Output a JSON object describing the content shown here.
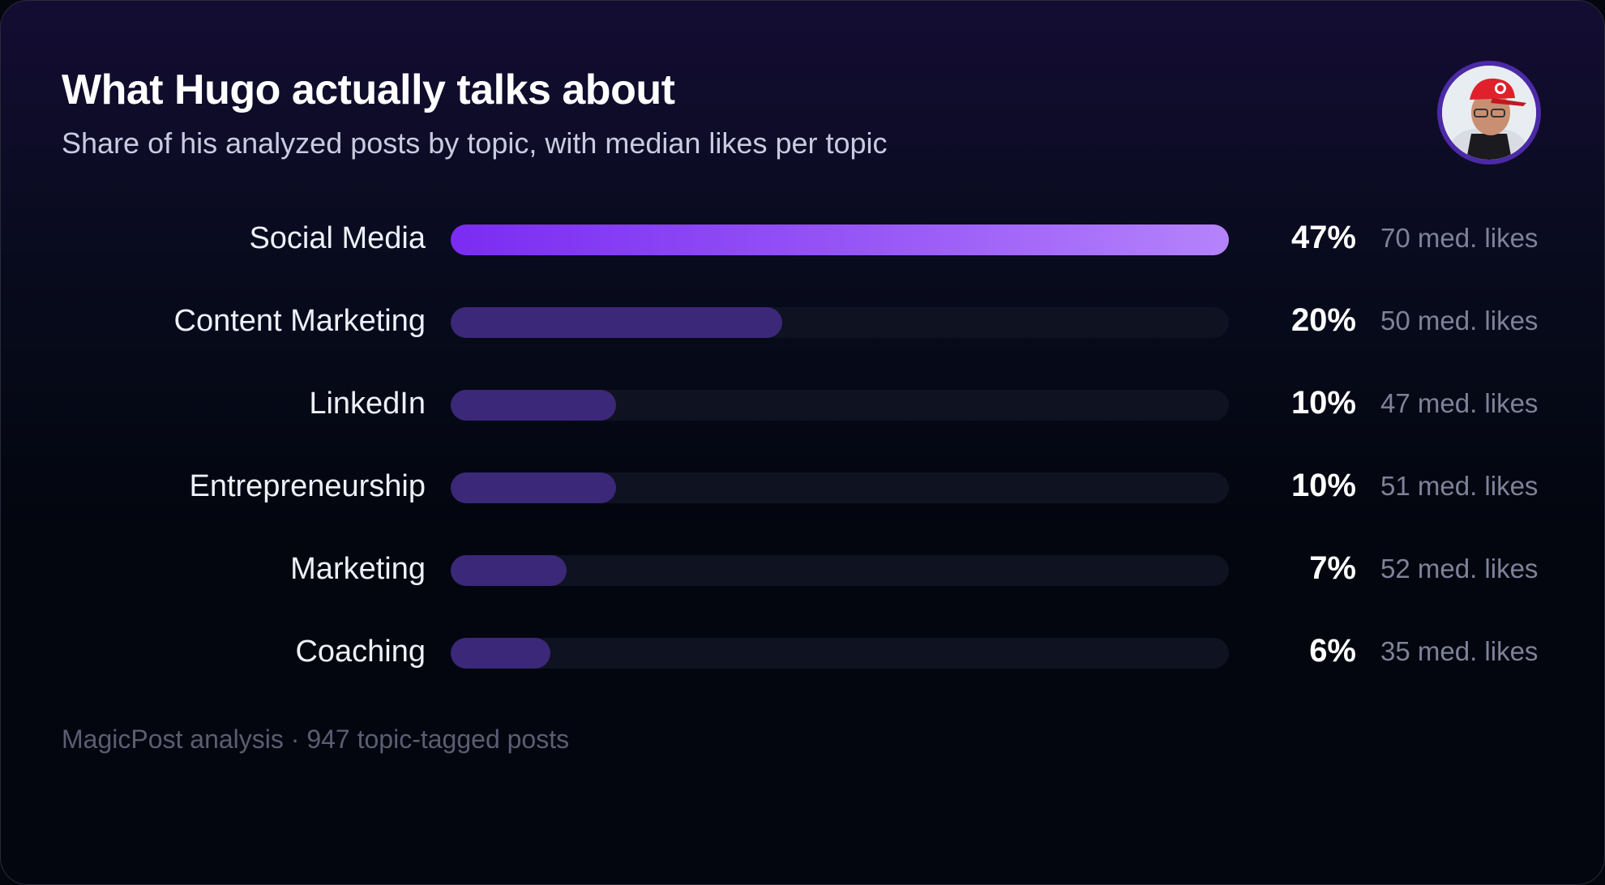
{
  "colors": {
    "background": "#03060f",
    "top_bar_start": "#7a2cf2",
    "top_bar_end": "#b583fb",
    "bar": "#3b2878",
    "track": "#0f1220",
    "avatar_ring": "#4b2aa6"
  },
  "avatar": {
    "icon": "profile-photo-red-cap"
  },
  "chart_data": {
    "type": "bar",
    "orientation": "horizontal",
    "title": "What Hugo actually talks about",
    "subtitle": "Share of his analyzed posts by topic, with median likes per topic",
    "categories": [
      "Social Media",
      "Content Marketing",
      "LinkedIn",
      "Entrepreneurship",
      "Marketing",
      "Coaching"
    ],
    "values": [
      47,
      20,
      10,
      10,
      7,
      6
    ],
    "value_labels": [
      "47%",
      "20%",
      "10%",
      "10%",
      "7%",
      "6%"
    ],
    "median_likes": [
      70,
      50,
      47,
      51,
      52,
      35
    ],
    "median_likes_labels": [
      "70 med. likes",
      "50 med. likes",
      "47 med. likes",
      "51 med. likes",
      "52 med. likes",
      "35 med. likes"
    ],
    "xlim": [
      0,
      47
    ],
    "grid": false,
    "legend": "none"
  },
  "footer": "MagicPost analysis · 947 topic-tagged posts"
}
